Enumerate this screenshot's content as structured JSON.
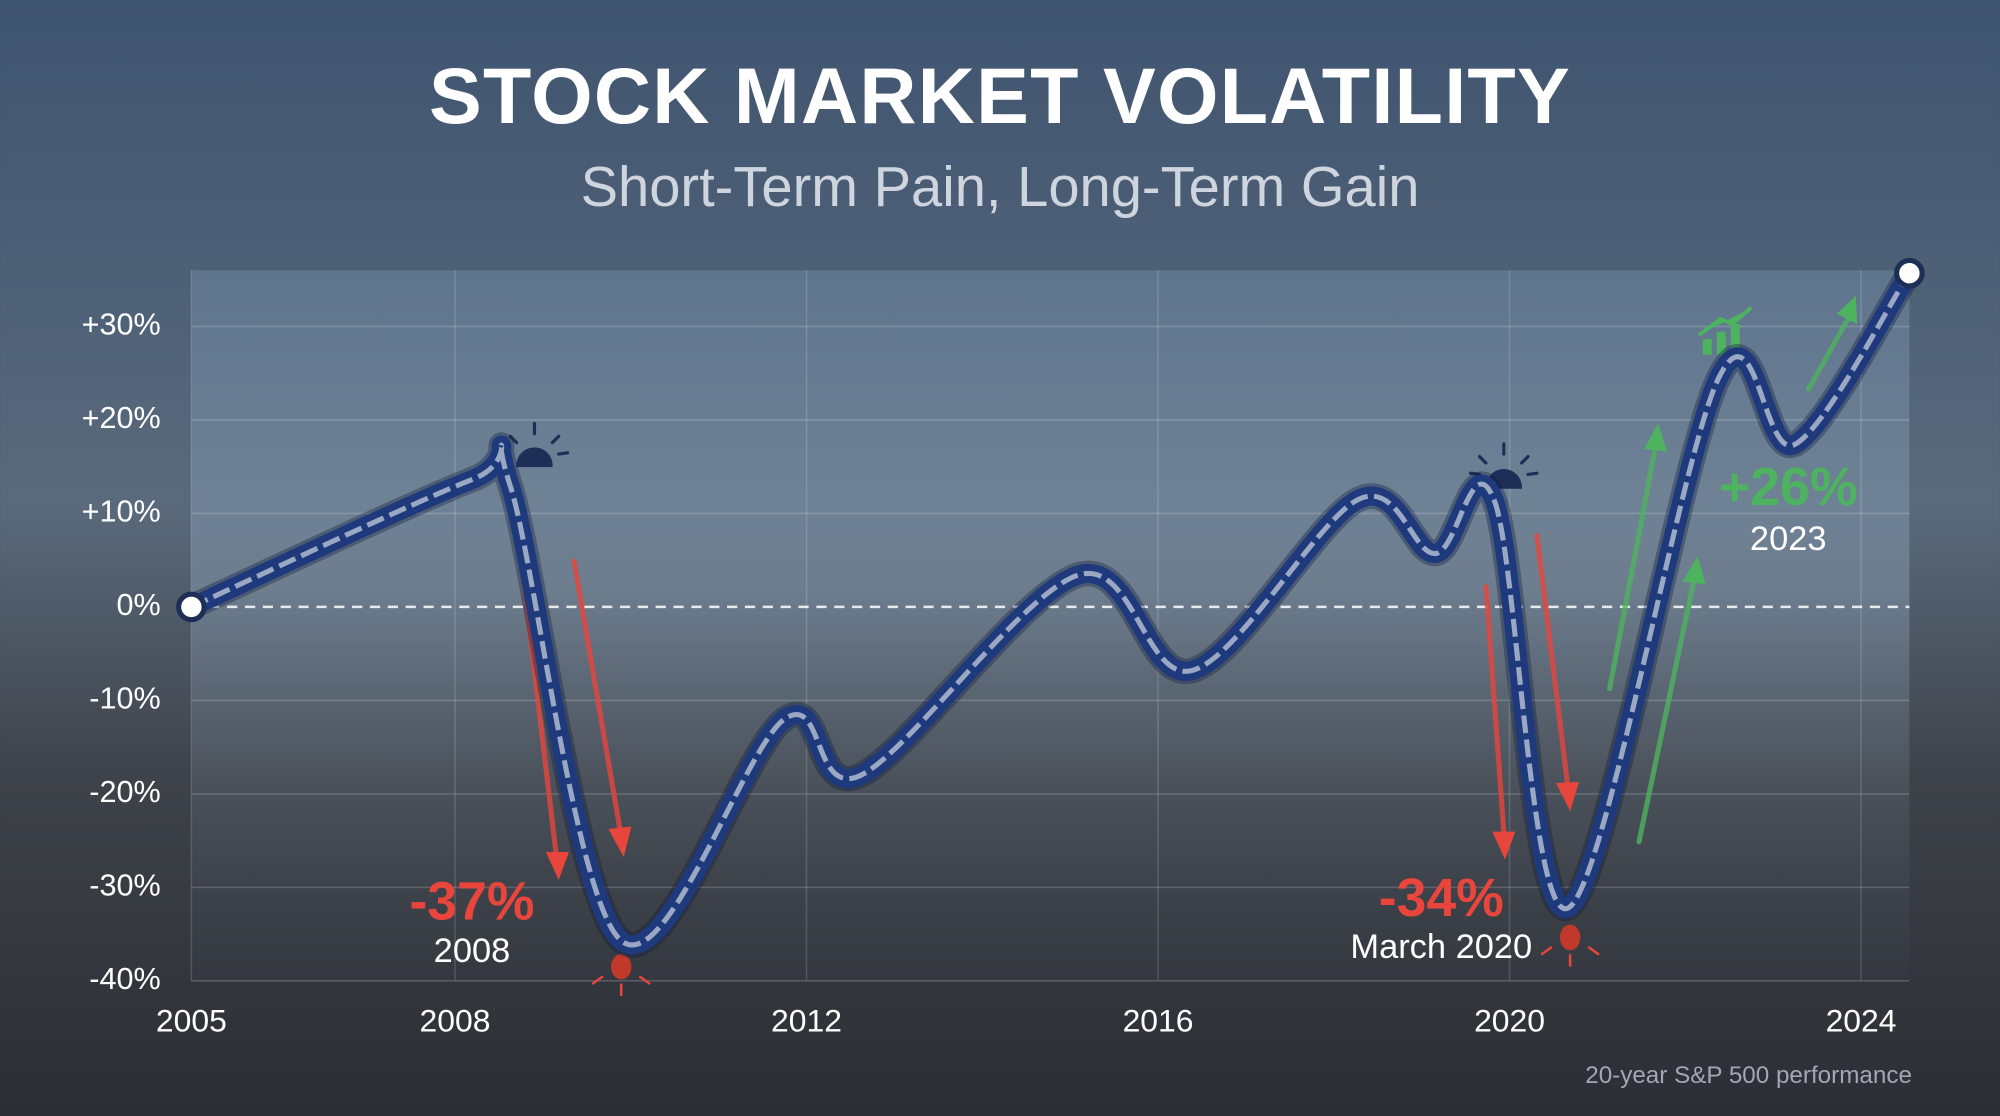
{
  "chart_data": {
    "type": "line",
    "title": "STOCK MARKET VOLATILITY",
    "subtitle": "Short-Term Pain, Long-Term Gain",
    "x": [
      2005,
      2008.19,
      2008.63,
      2009.89,
      2011.75,
      2012.62,
      2015.09,
      2016.39,
      2018.28,
      2019.15,
      2019.83,
      2020.67,
      2022.38,
      2023.25,
      2024.55
    ],
    "values": [
      0,
      13.6,
      12.9,
      -35.7,
      -12,
      -18,
      3.4,
      -6.8,
      11.5,
      5.7,
      11.3,
      -32.2,
      24.5,
      17.4,
      35.7
    ],
    "color": "#1e3a7c",
    "xlim": [
      2005,
      2024.55
    ],
    "xticks": [
      2005,
      2008,
      2012,
      2016,
      2020,
      2024
    ],
    "ylim": [
      -40,
      36
    ],
    "yticks": [
      {
        "value": -40,
        "label": "-40%"
      },
      {
        "value": -30,
        "label": "-30%"
      },
      {
        "value": -20,
        "label": "-20%"
      },
      {
        "value": -10,
        "label": "-10%"
      },
      {
        "value": 0,
        "label": "0%"
      },
      {
        "value": 10,
        "label": "+10%"
      },
      {
        "value": 20,
        "label": "+20%"
      },
      {
        "value": 30,
        "label": "+30%"
      }
    ],
    "grid": true,
    "zero_line": true,
    "annotations": [
      {
        "value": "-37%",
        "label": "2008",
        "color": "#e8453c"
      },
      {
        "value": "-34%",
        "label": "March 2020",
        "color": "#e8453c"
      },
      {
        "value": "+26%",
        "label": "2023",
        "color": "#4db35e"
      }
    ],
    "footnote": "20-year S&P 500 performance"
  }
}
